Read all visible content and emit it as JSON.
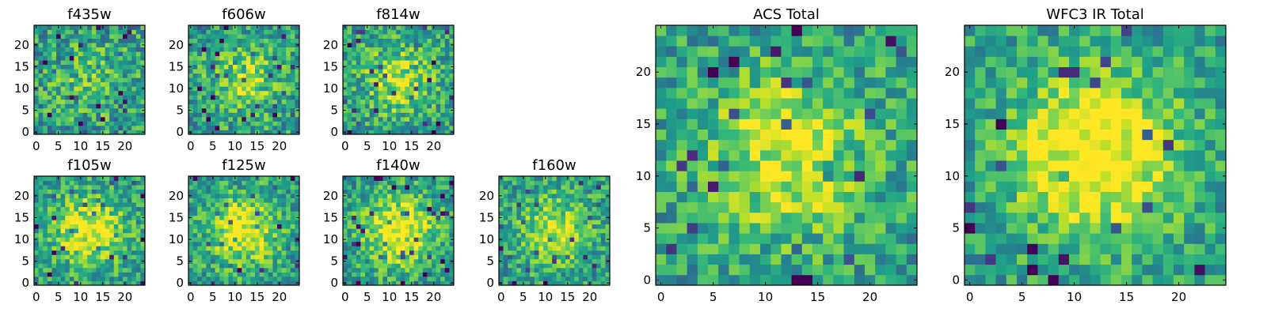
{
  "chart_data": [
    {
      "type": "heatmap",
      "title": "f435w",
      "grid_size": 25,
      "xticks": [
        0,
        5,
        10,
        15,
        20
      ],
      "yticks": [
        0,
        5,
        10,
        15,
        20
      ],
      "xlim": [
        -0.5,
        24.5
      ],
      "ylim": [
        -0.5,
        24.5
      ],
      "colormap": "viridis",
      "center_strength": 0.15,
      "noise": 0.55,
      "seed": 11
    },
    {
      "type": "heatmap",
      "title": "f606w",
      "grid_size": 25,
      "xticks": [
        0,
        5,
        10,
        15,
        20
      ],
      "yticks": [
        0,
        5,
        10,
        15,
        20
      ],
      "xlim": [
        -0.5,
        24.5
      ],
      "ylim": [
        -0.5,
        24.5
      ],
      "colormap": "viridis",
      "center_strength": 0.3,
      "noise": 0.5,
      "seed": 23
    },
    {
      "type": "heatmap",
      "title": "f814w",
      "grid_size": 25,
      "xticks": [
        0,
        5,
        10,
        15,
        20
      ],
      "yticks": [
        0,
        5,
        10,
        15,
        20
      ],
      "xlim": [
        -0.5,
        24.5
      ],
      "ylim": [
        -0.5,
        24.5
      ],
      "colormap": "viridis",
      "center_strength": 0.35,
      "noise": 0.5,
      "seed": 37
    },
    {
      "type": "heatmap",
      "title": "f105w",
      "grid_size": 25,
      "xticks": [
        0,
        5,
        10,
        15,
        20
      ],
      "yticks": [
        0,
        5,
        10,
        15,
        20
      ],
      "xlim": [
        -0.5,
        24.5
      ],
      "ylim": [
        -0.5,
        24.5
      ],
      "colormap": "viridis",
      "center_strength": 0.45,
      "noise": 0.45,
      "seed": 41
    },
    {
      "type": "heatmap",
      "title": "f125w",
      "grid_size": 25,
      "xticks": [
        0,
        5,
        10,
        15,
        20
      ],
      "yticks": [
        0,
        5,
        10,
        15,
        20
      ],
      "xlim": [
        -0.5,
        24.5
      ],
      "ylim": [
        -0.5,
        24.5
      ],
      "colormap": "viridis",
      "center_strength": 0.45,
      "noise": 0.45,
      "seed": 53
    },
    {
      "type": "heatmap",
      "title": "f140w",
      "grid_size": 25,
      "xticks": [
        0,
        5,
        10,
        15,
        20
      ],
      "yticks": [
        0,
        5,
        10,
        15,
        20
      ],
      "xlim": [
        -0.5,
        24.5
      ],
      "ylim": [
        -0.5,
        24.5
      ],
      "colormap": "viridis",
      "center_strength": 0.5,
      "noise": 0.45,
      "seed": 67
    },
    {
      "type": "heatmap",
      "title": "f160w",
      "grid_size": 25,
      "xticks": [
        0,
        5,
        10,
        15,
        20
      ],
      "yticks": [
        0,
        5,
        10,
        15,
        20
      ],
      "xlim": [
        -0.5,
        24.5
      ],
      "ylim": [
        -0.5,
        24.5
      ],
      "colormap": "viridis",
      "center_strength": 0.35,
      "noise": 0.45,
      "seed": 79
    },
    {
      "type": "heatmap",
      "title": "ACS Total",
      "grid_size": 25,
      "xticks": [
        0,
        5,
        10,
        15,
        20
      ],
      "yticks": [
        0,
        5,
        10,
        15,
        20
      ],
      "xlim": [
        -0.5,
        24.5
      ],
      "ylim": [
        -0.5,
        24.5
      ],
      "colormap": "viridis",
      "center_strength": 0.4,
      "noise": 0.45,
      "seed": 97
    },
    {
      "type": "heatmap",
      "title": "WFC3 IR Total",
      "grid_size": 25,
      "xticks": [
        0,
        5,
        10,
        15,
        20
      ],
      "yticks": [
        0,
        5,
        10,
        15,
        20
      ],
      "xlim": [
        -0.5,
        24.5
      ],
      "ylim": [
        -0.5,
        24.5
      ],
      "colormap": "viridis",
      "center_strength": 0.55,
      "noise": 0.4,
      "seed": 113
    }
  ],
  "colors": {
    "frame": "#000000",
    "background": "#ffffff"
  }
}
